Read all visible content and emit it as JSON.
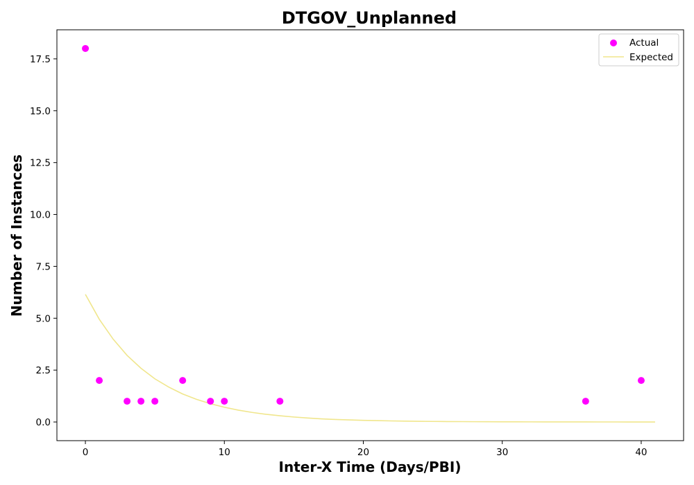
{
  "chart_data": {
    "type": "scatter",
    "title": "DTGOV_Unplanned",
    "xlabel": "Inter-X Time (Days/PBI)",
    "ylabel": "Number of Instances",
    "xlim": [
      -2.05,
      43.05
    ],
    "ylim": [
      -0.9,
      18.9
    ],
    "xticks": [
      0,
      10,
      20,
      30,
      40
    ],
    "xtick_labels": [
      "0",
      "10",
      "20",
      "30",
      "40"
    ],
    "yticks": [
      0,
      2.5,
      5,
      7.5,
      10,
      12.5,
      15,
      17.5
    ],
    "ytick_labels": [
      "0.0",
      "2.5",
      "5.0",
      "7.5",
      "10.0",
      "12.5",
      "15.0",
      "17.5"
    ],
    "grid": false,
    "legend_position": "top-right",
    "series": [
      {
        "name": "Actual",
        "kind": "scatter",
        "color": "#ff00ff",
        "x": [
          0,
          1,
          3,
          4,
          5,
          7,
          9,
          10,
          14,
          36,
          40
        ],
        "y": [
          18,
          2,
          1,
          1,
          1,
          2,
          1,
          1,
          1,
          1,
          2
        ]
      },
      {
        "name": "Expected",
        "kind": "line",
        "color": "#f0e68c",
        "x": [
          0,
          1,
          2,
          3,
          4,
          5,
          6,
          7,
          8,
          9,
          10,
          11,
          12,
          13,
          14,
          15,
          16,
          17,
          18,
          19,
          20,
          21,
          22,
          23,
          24,
          25,
          26,
          27,
          28,
          29,
          30,
          31,
          32,
          33,
          34,
          35,
          36,
          37,
          38,
          39,
          40,
          41
        ],
        "y": [
          6.15,
          4.95,
          3.99,
          3.21,
          2.59,
          2.08,
          1.68,
          1.35,
          1.09,
          0.88,
          0.71,
          0.57,
          0.46,
          0.37,
          0.3,
          0.24,
          0.19,
          0.15,
          0.12,
          0.1,
          0.08,
          0.065,
          0.052,
          0.042,
          0.034,
          0.027,
          0.022,
          0.018,
          0.014,
          0.011,
          0.009,
          0.007,
          0.006,
          0.005,
          0.004,
          0.003,
          0.003,
          0.002,
          0.002,
          0.001,
          0.001,
          0.001
        ]
      }
    ]
  }
}
